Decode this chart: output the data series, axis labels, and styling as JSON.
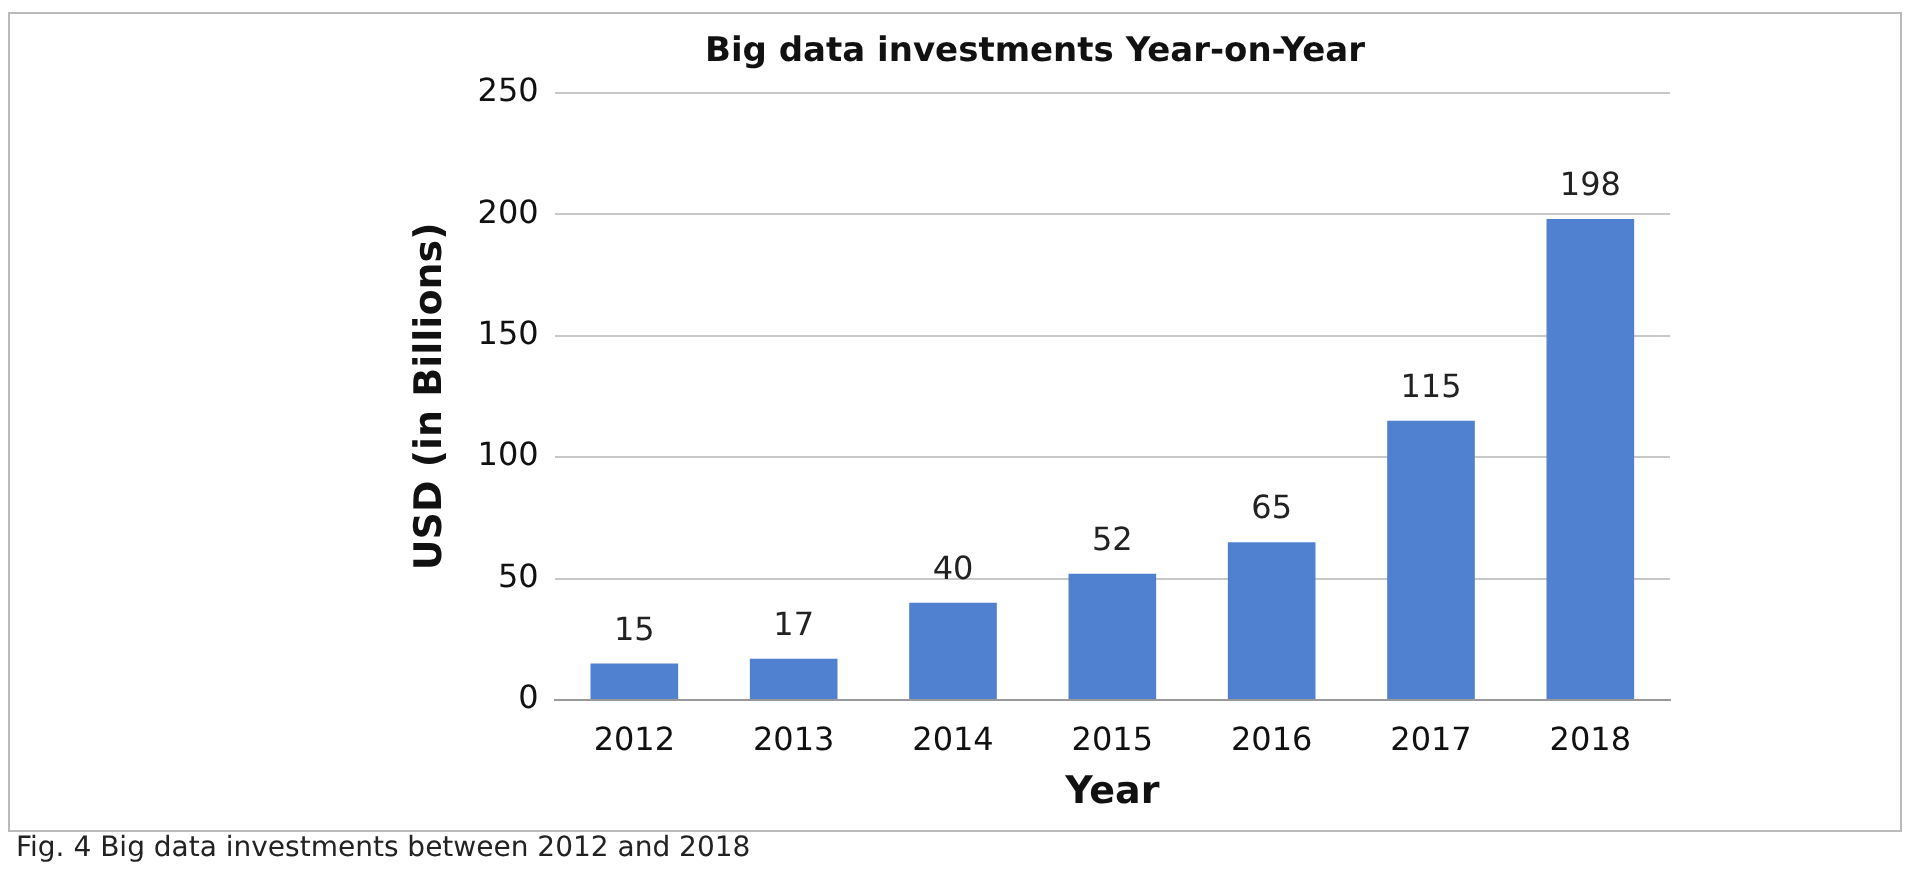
{
  "chart_data": {
    "type": "bar",
    "title": "Big data investments Year-on-Year",
    "xlabel": "Year",
    "ylabel": "USD (in Billions)",
    "categories": [
      "2012",
      "2013",
      "2014",
      "2015",
      "2016",
      "2017",
      "2018"
    ],
    "values": [
      15,
      17,
      40,
      52,
      65,
      115,
      198
    ],
    "color": "#4f81d0",
    "ylim": [
      0,
      250
    ],
    "yticks": [
      0,
      50,
      100,
      150,
      200,
      250
    ],
    "grid": "y",
    "data_labels": true,
    "legend": false,
    "annotations": [
      "Fig. 4 Big data investments between 2012 and 2018"
    ]
  }
}
